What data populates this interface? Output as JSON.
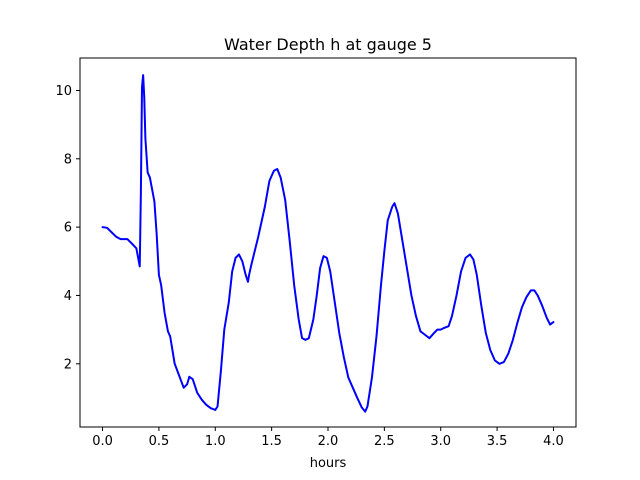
{
  "chart_data": {
    "type": "line",
    "title": "Water Depth h at gauge 5",
    "xlabel": "hours",
    "ylabel": "",
    "xlim": [
      -0.2,
      4.2
    ],
    "ylim": [
      0.15,
      10.95
    ],
    "xticks": [
      0.0,
      0.5,
      1.0,
      1.5,
      2.0,
      2.5,
      3.0,
      3.5,
      4.0
    ],
    "xtick_labels": [
      "0.0",
      "0.5",
      "1.0",
      "1.5",
      "2.0",
      "2.5",
      "3.0",
      "3.5",
      "4.0"
    ],
    "yticks": [
      2,
      4,
      6,
      8,
      10
    ],
    "ytick_labels": [
      "2",
      "4",
      "6",
      "8",
      "10"
    ],
    "grid": false,
    "series": [
      {
        "name": "",
        "color": "#0000ff",
        "points": [
          [
            0.0,
            6.0
          ],
          [
            0.04,
            5.98
          ],
          [
            0.08,
            5.85
          ],
          [
            0.12,
            5.72
          ],
          [
            0.16,
            5.65
          ],
          [
            0.22,
            5.65
          ],
          [
            0.26,
            5.52
          ],
          [
            0.3,
            5.38
          ],
          [
            0.33,
            4.85
          ],
          [
            0.34,
            7.0
          ],
          [
            0.35,
            10.1
          ],
          [
            0.36,
            10.45
          ],
          [
            0.37,
            9.8
          ],
          [
            0.38,
            8.6
          ],
          [
            0.4,
            7.6
          ],
          [
            0.42,
            7.45
          ],
          [
            0.46,
            6.75
          ],
          [
            0.48,
            5.8
          ],
          [
            0.5,
            4.6
          ],
          [
            0.52,
            4.3
          ],
          [
            0.55,
            3.5
          ],
          [
            0.58,
            2.95
          ],
          [
            0.6,
            2.8
          ],
          [
            0.64,
            2.0
          ],
          [
            0.68,
            1.65
          ],
          [
            0.72,
            1.3
          ],
          [
            0.75,
            1.4
          ],
          [
            0.77,
            1.62
          ],
          [
            0.8,
            1.55
          ],
          [
            0.84,
            1.15
          ],
          [
            0.88,
            0.95
          ],
          [
            0.92,
            0.8
          ],
          [
            0.96,
            0.7
          ],
          [
            1.0,
            0.65
          ],
          [
            1.02,
            0.75
          ],
          [
            1.05,
            1.8
          ],
          [
            1.08,
            3.0
          ],
          [
            1.12,
            3.8
          ],
          [
            1.15,
            4.7
          ],
          [
            1.18,
            5.1
          ],
          [
            1.21,
            5.2
          ],
          [
            1.24,
            5.0
          ],
          [
            1.27,
            4.6
          ],
          [
            1.29,
            4.4
          ],
          [
            1.3,
            4.6
          ],
          [
            1.32,
            4.9
          ],
          [
            1.38,
            5.7
          ],
          [
            1.44,
            6.6
          ],
          [
            1.48,
            7.35
          ],
          [
            1.52,
            7.65
          ],
          [
            1.55,
            7.7
          ],
          [
            1.58,
            7.45
          ],
          [
            1.62,
            6.8
          ],
          [
            1.66,
            5.6
          ],
          [
            1.7,
            4.3
          ],
          [
            1.74,
            3.3
          ],
          [
            1.77,
            2.75
          ],
          [
            1.8,
            2.7
          ],
          [
            1.83,
            2.75
          ],
          [
            1.87,
            3.3
          ],
          [
            1.9,
            4.0
          ],
          [
            1.93,
            4.8
          ],
          [
            1.96,
            5.15
          ],
          [
            1.99,
            5.1
          ],
          [
            2.02,
            4.7
          ],
          [
            2.06,
            3.8
          ],
          [
            2.1,
            2.9
          ],
          [
            2.14,
            2.2
          ],
          [
            2.18,
            1.6
          ],
          [
            2.22,
            1.3
          ],
          [
            2.26,
            1.0
          ],
          [
            2.3,
            0.72
          ],
          [
            2.33,
            0.6
          ],
          [
            2.35,
            0.75
          ],
          [
            2.39,
            1.6
          ],
          [
            2.43,
            2.8
          ],
          [
            2.47,
            4.3
          ],
          [
            2.5,
            5.3
          ],
          [
            2.53,
            6.2
          ],
          [
            2.57,
            6.6
          ],
          [
            2.59,
            6.7
          ],
          [
            2.62,
            6.4
          ],
          [
            2.66,
            5.6
          ],
          [
            2.7,
            4.8
          ],
          [
            2.74,
            4.0
          ],
          [
            2.78,
            3.4
          ],
          [
            2.82,
            2.95
          ],
          [
            2.86,
            2.85
          ],
          [
            2.9,
            2.75
          ],
          [
            2.94,
            2.9
          ],
          [
            2.97,
            3.0
          ],
          [
            3.0,
            3.0
          ],
          [
            3.03,
            3.05
          ],
          [
            3.07,
            3.1
          ],
          [
            3.1,
            3.4
          ],
          [
            3.14,
            4.0
          ],
          [
            3.18,
            4.7
          ],
          [
            3.22,
            5.1
          ],
          [
            3.26,
            5.2
          ],
          [
            3.29,
            5.05
          ],
          [
            3.32,
            4.6
          ],
          [
            3.36,
            3.7
          ],
          [
            3.4,
            2.9
          ],
          [
            3.44,
            2.4
          ],
          [
            3.48,
            2.1
          ],
          [
            3.52,
            2.0
          ],
          [
            3.56,
            2.05
          ],
          [
            3.6,
            2.3
          ],
          [
            3.64,
            2.7
          ],
          [
            3.68,
            3.2
          ],
          [
            3.72,
            3.65
          ],
          [
            3.76,
            3.95
          ],
          [
            3.8,
            4.15
          ],
          [
            3.83,
            4.15
          ],
          [
            3.86,
            4.0
          ],
          [
            3.9,
            3.7
          ],
          [
            3.94,
            3.35
          ],
          [
            3.97,
            3.15
          ],
          [
            4.0,
            3.22
          ]
        ]
      }
    ]
  }
}
